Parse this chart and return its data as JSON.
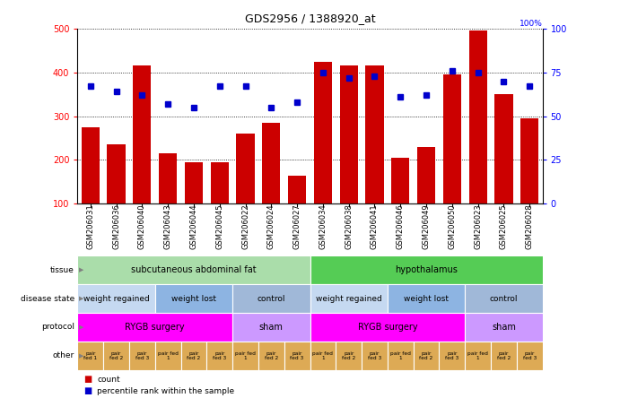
{
  "title": "GDS2956 / 1388920_at",
  "samples": [
    "GSM206031",
    "GSM206036",
    "GSM206040",
    "GSM206043",
    "GSM206044",
    "GSM206045",
    "GSM206022",
    "GSM206024",
    "GSM206027",
    "GSM206034",
    "GSM206038",
    "GSM206041",
    "GSM206046",
    "GSM206049",
    "GSM206050",
    "GSM206023",
    "GSM206025",
    "GSM206028"
  ],
  "counts": [
    275,
    235,
    415,
    215,
    195,
    195,
    260,
    285,
    165,
    425,
    415,
    415,
    205,
    230,
    395,
    495,
    350,
    295
  ],
  "percentiles": [
    67,
    64,
    62,
    57,
    55,
    67,
    67,
    55,
    58,
    75,
    72,
    73,
    61,
    62,
    76,
    75,
    70,
    67
  ],
  "ylim_left": [
    100,
    500
  ],
  "ylim_right": [
    0,
    100
  ],
  "yticks_left": [
    100,
    200,
    300,
    400,
    500
  ],
  "yticks_right": [
    0,
    25,
    50,
    75,
    100
  ],
  "bar_color": "#cc0000",
  "dot_color": "#0000cc",
  "tissue_regions": [
    {
      "label": "subcutaneous abdominal fat",
      "start": 0,
      "end": 9,
      "color": "#aaddaa"
    },
    {
      "label": "hypothalamus",
      "start": 9,
      "end": 18,
      "color": "#55cc55"
    }
  ],
  "disease_regions": [
    {
      "label": "weight regained",
      "start": 0,
      "end": 3,
      "color": "#c5d9f1"
    },
    {
      "label": "weight lost",
      "start": 3,
      "end": 6,
      "color": "#8db4e2"
    },
    {
      "label": "control",
      "start": 6,
      "end": 9,
      "color": "#a0b8d8"
    },
    {
      "label": "weight regained",
      "start": 9,
      "end": 12,
      "color": "#c5d9f1"
    },
    {
      "label": "weight lost",
      "start": 12,
      "end": 15,
      "color": "#8db4e2"
    },
    {
      "label": "control",
      "start": 15,
      "end": 18,
      "color": "#a0b8d8"
    }
  ],
  "protocol_regions": [
    {
      "label": "RYGB surgery",
      "start": 0,
      "end": 6,
      "color": "#ff00ff"
    },
    {
      "label": "sham",
      "start": 6,
      "end": 9,
      "color": "#cc99ff"
    },
    {
      "label": "RYGB surgery",
      "start": 9,
      "end": 15,
      "color": "#ff00ff"
    },
    {
      "label": "sham",
      "start": 15,
      "end": 18,
      "color": "#cc99ff"
    }
  ],
  "other_labels": [
    "pair\nfed 1",
    "pair\nfed 2",
    "pair\nfed 3",
    "pair fed\n1",
    "pair\nfed 2",
    "pair\nfed 3",
    "pair fed\n1",
    "pair\nfed 2",
    "pair\nfed 3",
    "pair fed\n1",
    "pair\nfed 2",
    "pair\nfed 3",
    "pair fed\n1",
    "pair\nfed 2",
    "pair\nfed 3",
    "pair fed\n1",
    "pair\nfed 2",
    "pair\nfed 3"
  ],
  "other_color": "#ddaa55",
  "row_labels": [
    "tissue",
    "disease state",
    "protocol",
    "other"
  ],
  "legend_bar_label": "count",
  "legend_dot_label": "percentile rank within the sample",
  "legend_bar_color": "#cc0000",
  "legend_dot_color": "#0000cc"
}
